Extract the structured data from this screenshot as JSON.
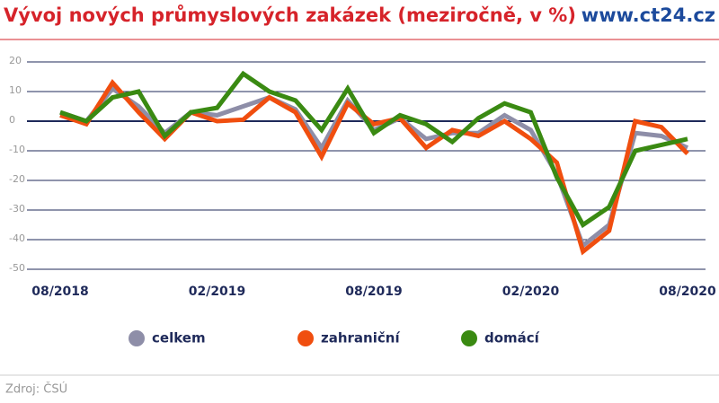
{
  "chart_data": {
    "type": "line",
    "title": "Vývoj nových průmyslových zakázek (meziročně, v %)",
    "brand": "www.ct24.cz",
    "source": "Zdroj: ČSÚ",
    "categories": [
      "08/2018",
      null,
      null,
      null,
      null,
      null,
      "02/2019",
      null,
      null,
      null,
      null,
      null,
      "08/2019",
      null,
      null,
      null,
      null,
      null,
      "02/2020",
      null,
      null,
      null,
      null,
      null,
      "08/2020"
    ],
    "series": [
      {
        "name": "celkem",
        "color": "#8e8ea8",
        "values": [
          3,
          0,
          11,
          5,
          -4,
          3,
          2,
          5,
          8,
          4,
          -9,
          7,
          -3,
          1,
          -6,
          -4,
          -4,
          2,
          -3,
          -18,
          -42,
          -35,
          -4,
          -5,
          -9
        ]
      },
      {
        "name": "zahraniční",
        "color": "#f04e0f",
        "values": [
          2,
          -1,
          13,
          3,
          -6,
          3,
          0,
          0.5,
          8,
          3,
          -12,
          6,
          -1,
          1,
          -9,
          -3,
          -5,
          0,
          -6,
          -14,
          -44,
          -37,
          0,
          -2,
          -11
        ]
      },
      {
        "name": "domácí",
        "color": "#3a8a12",
        "values": [
          3,
          0,
          8,
          10,
          -5,
          3,
          4.5,
          16,
          10,
          7,
          -3,
          11,
          -4,
          2,
          -1,
          -7,
          1,
          6,
          3,
          -19,
          -35,
          -29,
          -10,
          -8,
          -6
        ]
      }
    ],
    "ylim": [
      -50,
      20
    ],
    "yticks": [
      -50,
      -40,
      -30,
      -20,
      -10,
      0,
      10,
      20
    ],
    "grid": true
  }
}
